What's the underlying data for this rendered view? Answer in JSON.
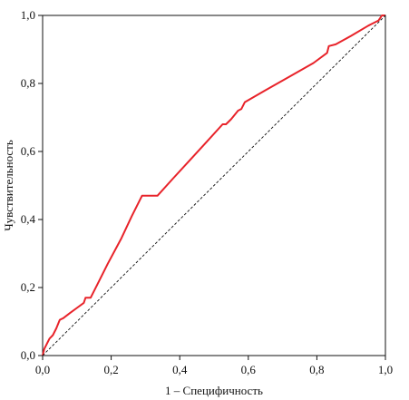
{
  "chart_data": {
    "type": "line",
    "title": "",
    "xlabel": "1 – Специфичность",
    "ylabel": "Чувствительность",
    "xlim": [
      0,
      1
    ],
    "ylim": [
      0,
      1
    ],
    "x_ticks": [
      "0,0",
      "0,2",
      "0,4",
      "0,6",
      "0,8",
      "1,0"
    ],
    "y_ticks": [
      "0,0",
      "0,2",
      "0,4",
      "0,6",
      "0,8",
      "1,0"
    ],
    "grid": false,
    "legend": "none",
    "series": [
      {
        "color": "#e8232a",
        "style": "solid",
        "points": [
          [
            0.0,
            0.0
          ],
          [
            0.005,
            0.02
          ],
          [
            0.01,
            0.03
          ],
          [
            0.015,
            0.04
          ],
          [
            0.02,
            0.05
          ],
          [
            0.03,
            0.06
          ],
          [
            0.04,
            0.08
          ],
          [
            0.05,
            0.105
          ],
          [
            0.06,
            0.11
          ],
          [
            0.08,
            0.125
          ],
          [
            0.1,
            0.14
          ],
          [
            0.12,
            0.155
          ],
          [
            0.125,
            0.17
          ],
          [
            0.14,
            0.17
          ],
          [
            0.16,
            0.21
          ],
          [
            0.19,
            0.27
          ],
          [
            0.23,
            0.345
          ],
          [
            0.26,
            0.41
          ],
          [
            0.29,
            0.47
          ],
          [
            0.335,
            0.47
          ],
          [
            0.38,
            0.52
          ],
          [
            0.43,
            0.575
          ],
          [
            0.48,
            0.63
          ],
          [
            0.525,
            0.68
          ],
          [
            0.535,
            0.68
          ],
          [
            0.55,
            0.695
          ],
          [
            0.57,
            0.72
          ],
          [
            0.58,
            0.725
          ],
          [
            0.59,
            0.745
          ],
          [
            0.65,
            0.78
          ],
          [
            0.72,
            0.82
          ],
          [
            0.79,
            0.86
          ],
          [
            0.83,
            0.89
          ],
          [
            0.835,
            0.91
          ],
          [
            0.855,
            0.915
          ],
          [
            0.9,
            0.94
          ],
          [
            0.95,
            0.97
          ],
          [
            0.96,
            0.975
          ],
          [
            0.98,
            0.985
          ],
          [
            0.99,
            1.0
          ],
          [
            1.0,
            1.0
          ]
        ]
      },
      {
        "color": "#111111",
        "style": "dashed",
        "points": [
          [
            0,
            0
          ],
          [
            1,
            1
          ]
        ]
      }
    ]
  }
}
